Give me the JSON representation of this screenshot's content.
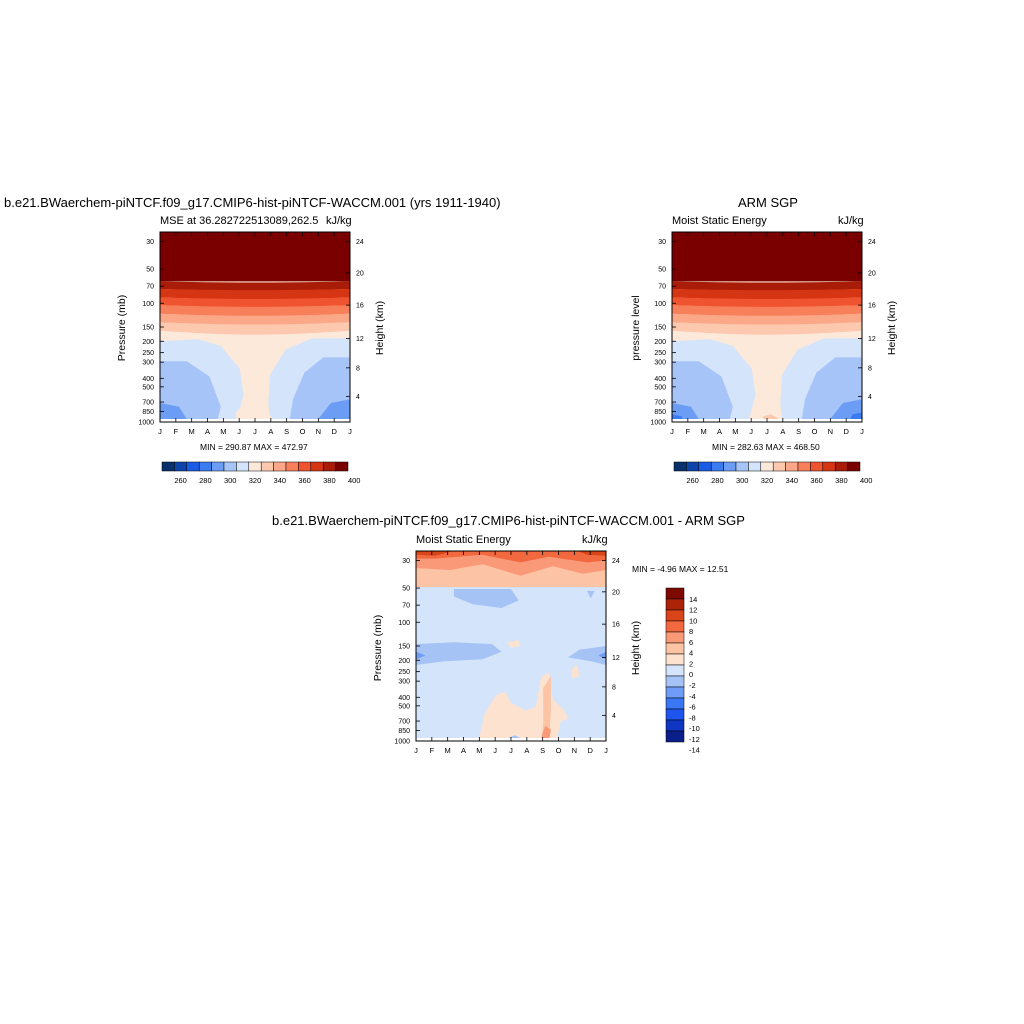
{
  "colors": {
    "ramp": [
      "#08306b",
      "#0c44ac",
      "#1b5ce6",
      "#3a7bf0",
      "#6c9df5",
      "#a6c4f7",
      "#d3e4fb",
      "#fde9da",
      "#fcc8ae",
      "#fba888",
      "#f77f5a",
      "#f0532f",
      "#d53513",
      "#a81c08",
      "#7a0000"
    ],
    "diff_ramp": [
      "#0a1f8a",
      "#0f35c3",
      "#1d55ee",
      "#3a77f5",
      "#6e9cf6",
      "#a6c3f6",
      "#d3e4fb",
      "#fde3cf",
      "#fcc3a4",
      "#f99978",
      "#f26940",
      "#d94418",
      "#ad2307",
      "#7d0a00"
    ]
  },
  "panel1": {
    "title": "b.e21.BWaerchem-piNTCF.f09_g17.CMIP6-hist-piNTCF-WACCM.001 (yrs 1911-1940)",
    "left_label": "MSE at 36.282722513089,262.5",
    "right_label": "kJ/kg",
    "ylabel": "Pressure (mb)",
    "y2label": "Height (km)",
    "minmax": "MIN = 290.87   MAX = 472.97"
  },
  "panel2": {
    "title": "ARM SGP",
    "left_label": "Moist Static Energy",
    "right_label": "kJ/kg",
    "ylabel": "pressure level",
    "y2label": "Height (km)",
    "minmax": "MIN = 282.63   MAX = 468.50"
  },
  "panel3": {
    "title": "b.e21.BWaerchem-piNTCF.f09_g17.CMIP6-hist-piNTCF-WACCM.001 - ARM SGP",
    "left_label": "Moist Static Energy",
    "right_label": "kJ/kg",
    "ylabel": "Pressure (mb)",
    "y2label": "Height (km)",
    "minmax": "MIN =  -4.96   MAX =  12.51"
  },
  "chart_data": [
    {
      "type": "heatmap",
      "title": "b.e21.BWaerchem-piNTCF.f09_g17.CMIP6-hist-piNTCF-WACCM.001 (yrs 1911-1940)",
      "x_ticks": [
        "J",
        "F",
        "M",
        "A",
        "M",
        "J",
        "J",
        "A",
        "S",
        "O",
        "N",
        "D",
        "J"
      ],
      "y_ticks": [
        "30",
        "50",
        "70",
        "100",
        "150",
        "200",
        "250",
        "300",
        "400",
        "500",
        "700",
        "850",
        "1000"
      ],
      "y2_ticks": [
        "24",
        "20",
        "16",
        "12",
        "8",
        "4"
      ],
      "colorbar_ticks": [
        "260",
        "280",
        "300",
        "320",
        "340",
        "360",
        "380",
        "400"
      ],
      "min": 290.87,
      "max": 472.97
    },
    {
      "type": "heatmap",
      "title": "ARM SGP",
      "x_ticks": [
        "J",
        "F",
        "M",
        "A",
        "M",
        "J",
        "J",
        "A",
        "S",
        "O",
        "N",
        "D",
        "J"
      ],
      "y_ticks": [
        "30",
        "50",
        "70",
        "100",
        "150",
        "200",
        "250",
        "300",
        "400",
        "500",
        "700",
        "850",
        "1000"
      ],
      "y2_ticks": [
        "24",
        "20",
        "16",
        "12",
        "8",
        "4"
      ],
      "colorbar_ticks": [
        "260",
        "280",
        "300",
        "320",
        "340",
        "360",
        "380",
        "400"
      ],
      "min": 282.63,
      "max": 468.5
    },
    {
      "type": "heatmap",
      "title": "b.e21.BWaerchem-piNTCF.f09_g17.CMIP6-hist-piNTCF-WACCM.001 - ARM SGP",
      "x_ticks": [
        "J",
        "F",
        "M",
        "A",
        "M",
        "J",
        "J",
        "A",
        "S",
        "O",
        "N",
        "D",
        "J"
      ],
      "y_ticks": [
        "30",
        "50",
        "70",
        "100",
        "150",
        "200",
        "250",
        "300",
        "400",
        "500",
        "700",
        "850",
        "1000"
      ],
      "y2_ticks": [
        "24",
        "20",
        "16",
        "12",
        "8",
        "4"
      ],
      "colorbar_ticks": [
        "14",
        "12",
        "10",
        "8",
        "6",
        "4",
        "2",
        "0",
        "-2",
        "-4",
        "-6",
        "-8",
        "-10",
        "-12",
        "-14"
      ],
      "min": -4.96,
      "max": 12.51
    }
  ]
}
